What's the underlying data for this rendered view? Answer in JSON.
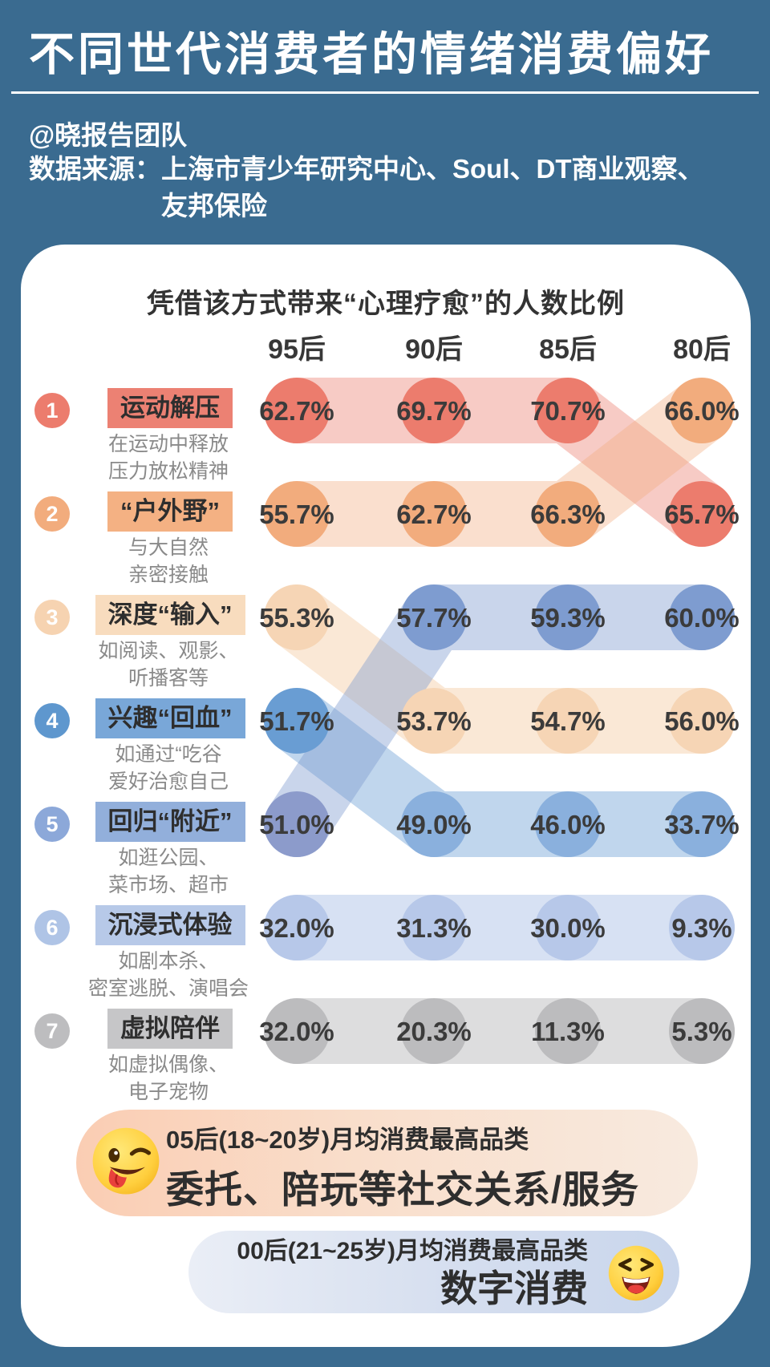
{
  "page": {
    "background": "#3A6B90",
    "card_background": "#FFFFFF"
  },
  "header": {
    "title": "不同世代消费者的情绪消费偏好",
    "credit": "@晓报告团队",
    "source_label": "数据来源：",
    "source_line1": "上海市青少年研究中心、Soul、DT商业观察、",
    "source_line2": "友邦保险"
  },
  "chart_data": {
    "type": "bump",
    "title": "凭借该方式带来“心理疗愈”的人数比例",
    "columns": [
      "95后",
      "90后",
      "85后",
      "80后"
    ],
    "legend_position": "left",
    "grid": false,
    "series": [
      {
        "rank": 1,
        "name": "运动解压",
        "desc_lines": [
          "在运动中释放",
          "压力放松精神"
        ],
        "values": [
          62.7,
          69.7,
          70.7,
          65.7
        ],
        "display": [
          "62.7%",
          "69.7%",
          "70.7%",
          "65.7%"
        ],
        "rows": [
          1,
          1,
          1,
          2
        ],
        "badge_color": "#EC7C6D",
        "pill_color": "#EC8173",
        "dot_colors": [
          "#EC7C6D",
          "#EC7C6D",
          "#EC7C6D",
          "#EC7C6D"
        ],
        "band_color": "#EC7C6D",
        "band_opacity": 0.4
      },
      {
        "rank": 2,
        "name": "“户外野”",
        "desc_lines": [
          "与大自然",
          "亲密接触"
        ],
        "values": [
          55.7,
          62.7,
          66.3,
          66.0
        ],
        "display": [
          "55.7%",
          "62.7%",
          "66.3%",
          "66.0%"
        ],
        "rows": [
          2,
          2,
          2,
          1
        ],
        "badge_color": "#F2AC7D",
        "pill_color": "#F4B183",
        "dot_colors": [
          "#F2AC7D",
          "#F2AC7D",
          "#F2AC7D",
          "#F2AC7D"
        ],
        "band_color": "#F2AC7D",
        "band_opacity": 0.38
      },
      {
        "rank": 3,
        "name": "深度“输入”",
        "desc_lines": [
          "如阅读、观影、",
          "听播客等"
        ],
        "values": [
          55.3,
          53.7,
          54.7,
          56.0
        ],
        "display": [
          "55.3%",
          "53.7%",
          "54.7%",
          "56.0%"
        ],
        "rows": [
          3,
          4,
          4,
          4
        ],
        "badge_color": "#F6D3B1",
        "pill_color": "#F8DCBE",
        "dot_colors": [
          "#F6D5B5",
          "#F6D5B5",
          "#F6D5B5",
          "#F6D5B5"
        ],
        "band_color": "#F6D5B5",
        "band_opacity": 0.55
      },
      {
        "rank": 4,
        "name": "兴趣“回血”",
        "desc_lines": [
          "如通过“吃谷",
          "爱好治愈自己"
        ],
        "values": [
          51.7,
          49.0,
          46.0,
          33.7
        ],
        "display": [
          "51.7%",
          "49.0%",
          "46.0%",
          "33.7%"
        ],
        "rows": [
          4,
          5,
          5,
          5
        ],
        "badge_color": "#5E97CE",
        "pill_color": "#79A7D8",
        "dot_colors": [
          "#699DD3",
          "#8AB0DD",
          "#8AB0DD",
          "#8AB0DD"
        ],
        "band_color": "#699DD3",
        "band_opacity": 0.42
      },
      {
        "rank": 5,
        "name": "回归“附近”",
        "desc_lines": [
          "如逛公园、",
          "菜市场、超市"
        ],
        "values": [
          51.0,
          57.7,
          59.3,
          60.0
        ],
        "display": [
          "51.0%",
          "57.7%",
          "59.3%",
          "60.0%"
        ],
        "rows": [
          5,
          3,
          3,
          3
        ],
        "badge_color": "#8CA8D9",
        "pill_color": "#92AFDB",
        "dot_colors": [
          "#8C9BCB",
          "#7E9CD0",
          "#7E9CD0",
          "#7E9CD0"
        ],
        "band_color": "#7E9CD0",
        "band_opacity": 0.42
      },
      {
        "rank": 6,
        "name": "沉浸式体验",
        "desc_lines": [
          "如剧本杀、",
          "密室逃脱、演唱会"
        ],
        "values": [
          32.0,
          31.3,
          30.0,
          9.3
        ],
        "display": [
          "32.0%",
          "31.3%",
          "30.0%",
          "9.3%"
        ],
        "rows": [
          6,
          6,
          6,
          6
        ],
        "badge_color": "#AFC4E6",
        "pill_color": "#B7C9E8",
        "dot_colors": [
          "#B7C8E9",
          "#B7C8E9",
          "#B7C8E9",
          "#B7C8E9"
        ],
        "band_color": "#B7C8E9",
        "band_opacity": 0.55
      },
      {
        "rank": 7,
        "name": "虚拟陪伴",
        "desc_lines": [
          "如虚拟偶像、",
          "电子宠物"
        ],
        "values": [
          32.0,
          20.3,
          11.3,
          5.3
        ],
        "display": [
          "32.0%",
          "20.3%",
          "11.3%",
          "5.3%"
        ],
        "rows": [
          7,
          7,
          7,
          7
        ],
        "badge_color": "#BDBDBF",
        "pill_color": "#C6C6C8",
        "dot_colors": [
          "#BCBCBE",
          "#BCBCBE",
          "#BCBCBE",
          "#BCBCBE"
        ],
        "band_color": "#BCBCBE",
        "band_opacity": 0.5
      }
    ]
  },
  "footnotes": [
    {
      "icon": "wink-tongue-emoji",
      "line1": "05后(18~20岁)月均消费最高品类",
      "line2": "委托、陪玩等社交关系/服务"
    },
    {
      "icon": "laughing-emoji",
      "line1": "00后(21~25岁)月均消费最高品类",
      "line2": "数字消费"
    }
  ]
}
